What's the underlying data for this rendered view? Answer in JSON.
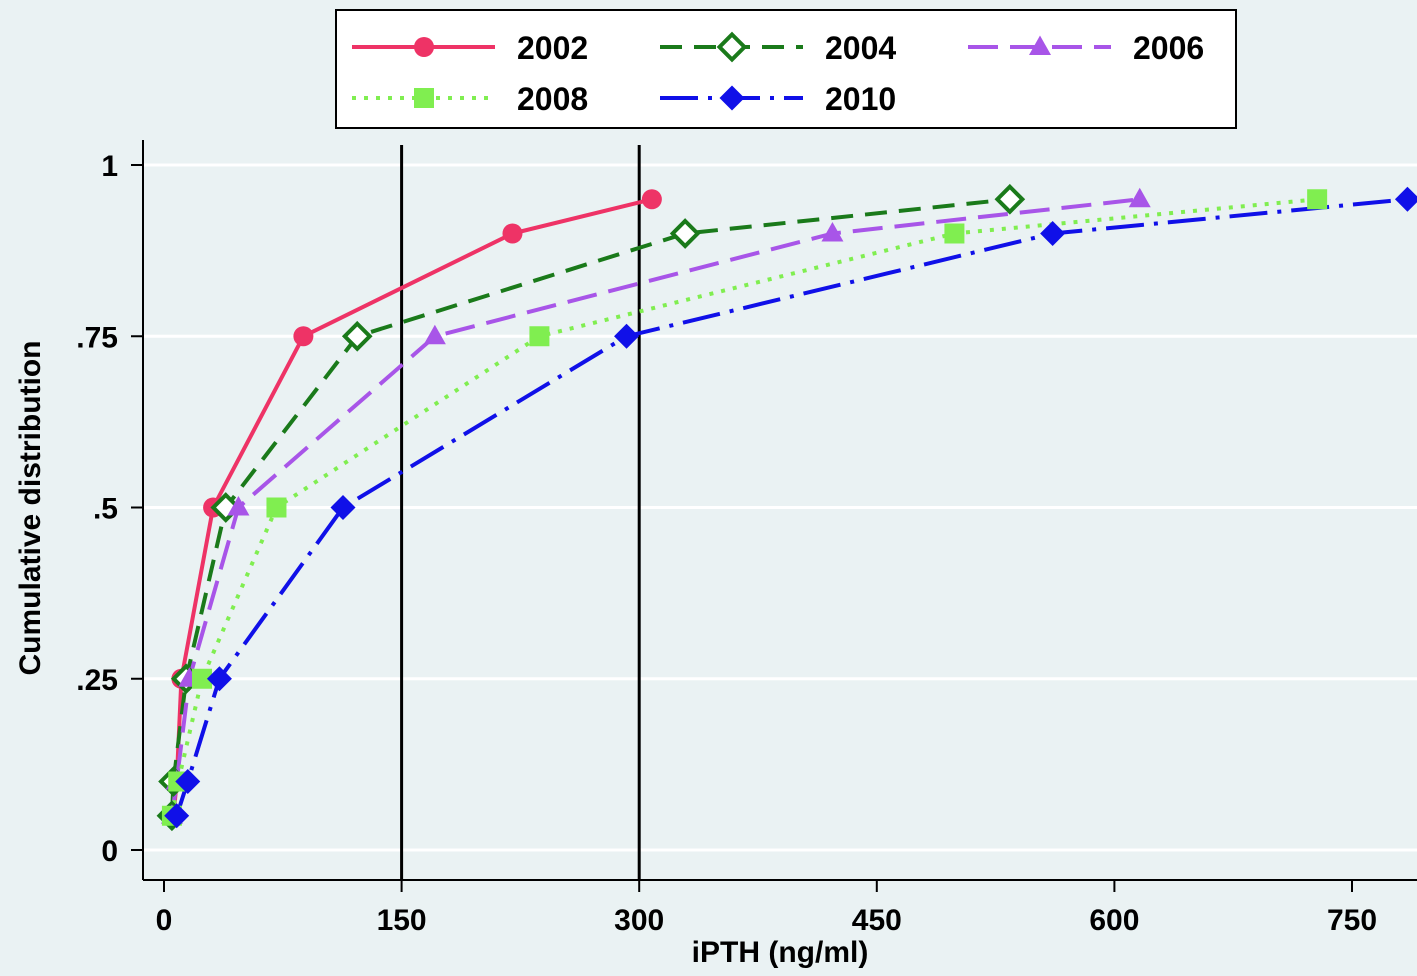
{
  "chart_data": {
    "type": "line",
    "xlabel": "iPTH (ng/ml)",
    "ylabel": "Cumulative distribution",
    "xlim": [
      0,
      790
    ],
    "ylim": [
      -0.05,
      1.02
    ],
    "x_ticks": [
      0,
      150,
      300,
      450,
      600,
      750
    ],
    "x_tick_labels": [
      "0",
      "150",
      "300",
      "450",
      "600",
      "750"
    ],
    "y_ticks": [
      0,
      0.25,
      0.5,
      0.75,
      1
    ],
    "y_tick_labels": [
      "0",
      ".25",
      ".5",
      ".75",
      "1"
    ],
    "reference_lines_x": [
      150,
      300
    ],
    "grid": "horizontal",
    "legend_position": "top",
    "series": [
      {
        "name": "2002",
        "color": "#ee3366",
        "dash": "solid",
        "marker": "circle",
        "points": [
          [
            6,
            0.05
          ],
          [
            8,
            0.1
          ],
          [
            11,
            0.25
          ],
          [
            31,
            0.5
          ],
          [
            88,
            0.75
          ],
          [
            220,
            0.9
          ],
          [
            308,
            0.95
          ]
        ]
      },
      {
        "name": "2004",
        "color": "#1a7a1a",
        "dash": "dash",
        "marker": "diamond-open",
        "points": [
          [
            5,
            0.05
          ],
          [
            6,
            0.1
          ],
          [
            14,
            0.25
          ],
          [
            39,
            0.5
          ],
          [
            122,
            0.75
          ],
          [
            329,
            0.9
          ],
          [
            534,
            0.95
          ]
        ]
      },
      {
        "name": "2006",
        "color": "#a855e8",
        "dash": "longdash",
        "marker": "triangle",
        "points": [
          [
            5,
            0.05
          ],
          [
            8,
            0.1
          ],
          [
            16,
            0.25
          ],
          [
            47,
            0.5
          ],
          [
            171,
            0.75
          ],
          [
            422,
            0.9
          ],
          [
            616,
            0.95
          ]
        ]
      },
      {
        "name": "2008",
        "color": "#80ee50",
        "dash": "dot",
        "marker": "square",
        "points": [
          [
            5,
            0.05
          ],
          [
            9,
            0.1
          ],
          [
            24,
            0.25
          ],
          [
            71,
            0.5
          ],
          [
            237,
            0.75
          ],
          [
            499,
            0.9
          ],
          [
            728,
            0.95
          ]
        ]
      },
      {
        "name": "2010",
        "color": "#1010e8",
        "dash": "dashdot",
        "marker": "diamond",
        "points": [
          [
            8,
            0.05
          ],
          [
            15,
            0.1
          ],
          [
            35,
            0.25
          ],
          [
            113,
            0.5
          ],
          [
            292,
            0.75
          ],
          [
            561,
            0.9
          ],
          [
            785,
            0.95
          ]
        ]
      }
    ]
  }
}
